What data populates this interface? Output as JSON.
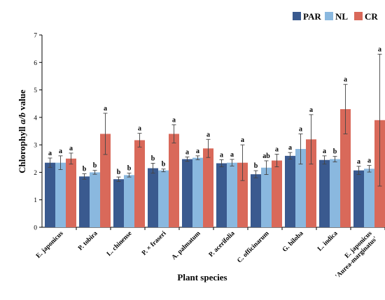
{
  "chart_data": {
    "type": "bar",
    "title": "",
    "xlabel": "Plant species",
    "ylabel_parts": [
      "Chlorophyll ",
      "a/b",
      " value"
    ],
    "ylim": [
      0,
      7
    ],
    "yticks": [
      "0",
      "1",
      "2",
      "3",
      "4",
      "5",
      "6",
      "7"
    ],
    "legend_position": "top-right",
    "grid": false,
    "categories": [
      [
        "E. japonicus"
      ],
      [
        "P. tobira"
      ],
      [
        "L. chinense"
      ],
      [
        "P. × fraseri"
      ],
      [
        "A. palmatum"
      ],
      [
        "P. acerifolia"
      ],
      [
        "C. officinarum"
      ],
      [
        "G. biloba"
      ],
      [
        "L. indica"
      ],
      [
        "E. japonicus",
        "'Aurea-marginatus'"
      ]
    ],
    "series": [
      {
        "name": "PAR",
        "color": "#3a5a8f",
        "values": [
          2.35,
          1.85,
          1.75,
          2.15,
          2.48,
          2.33,
          1.93,
          2.6,
          2.45,
          2.07
        ],
        "errors": [
          0.17,
          0.1,
          0.08,
          0.18,
          0.08,
          0.13,
          0.13,
          0.12,
          0.15,
          0.15
        ],
        "sig": [
          "a",
          "b",
          "b",
          "b",
          "a",
          "a",
          "b",
          "a",
          "a",
          "a"
        ]
      },
      {
        "name": "NL",
        "color": "#8ab8df",
        "values": [
          2.35,
          2.0,
          1.9,
          2.07,
          2.53,
          2.35,
          2.17,
          2.85,
          2.48,
          2.13
        ],
        "errors": [
          0.25,
          0.07,
          0.07,
          0.05,
          0.07,
          0.12,
          0.25,
          0.55,
          0.1,
          0.12
        ],
        "sig": [
          "a",
          "b",
          "b",
          "b",
          "a",
          "a",
          "ab",
          "a",
          "b",
          "a"
        ]
      },
      {
        "name": "CR",
        "color": "#d9695a",
        "values": [
          2.5,
          3.4,
          3.17,
          3.4,
          2.87,
          2.35,
          2.43,
          3.2,
          4.3,
          3.9
        ],
        "errors": [
          0.2,
          0.75,
          0.25,
          0.33,
          0.33,
          0.65,
          0.23,
          0.9,
          0.9,
          2.4
        ],
        "sig": [
          "a",
          "a",
          "a",
          "a",
          "a",
          "a",
          "a",
          "a",
          "a",
          "a"
        ]
      }
    ]
  }
}
